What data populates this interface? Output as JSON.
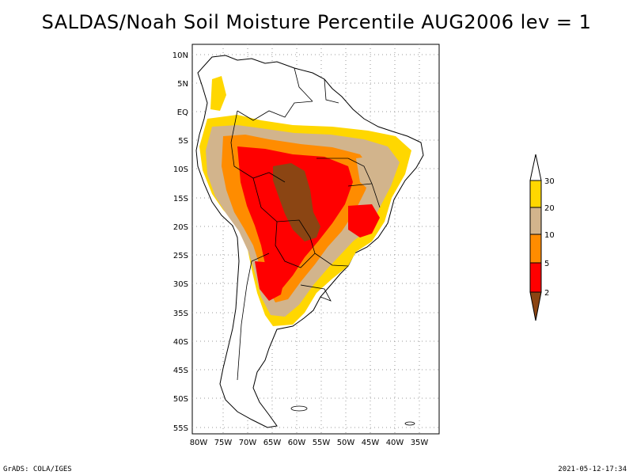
{
  "title": "SALDAS/Noah Soil Moisture Percentile AUG2006 lev = 1",
  "footer_left": "GrADS: COLA/IGES",
  "footer_right": "2021-05-12-17:34",
  "map": {
    "lat_labels": [
      "10N",
      "5N",
      "EQ",
      "5S",
      "10S",
      "15S",
      "20S",
      "25S",
      "30S",
      "35S",
      "40S",
      "45S",
      "50S",
      "55S"
    ],
    "lon_labels": [
      "80W",
      "75W",
      "70W",
      "65W",
      "60W",
      "55W",
      "50W",
      "45W",
      "40W",
      "35W"
    ]
  },
  "legend": {
    "labels": [
      "30",
      "20",
      "10",
      "5",
      "2"
    ],
    "colors": [
      "#ffffff",
      "#ffd700",
      "#d2b48c",
      "#ff8c00",
      "#ff0000",
      "#8b4513"
    ]
  }
}
